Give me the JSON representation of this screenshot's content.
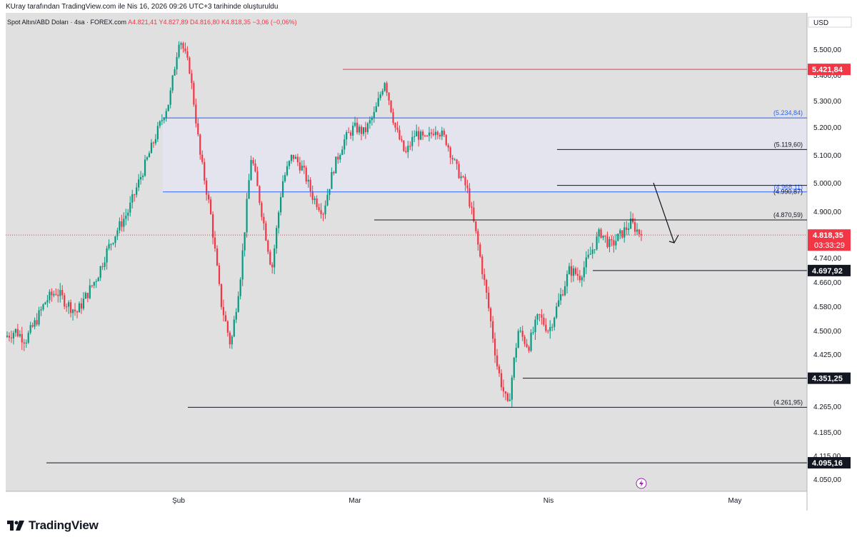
{
  "header": {
    "caption": "KUray tarafından TradingView.com ile Nis 16, 2026 09:26 UTC+3 tarihinde oluşturuldu"
  },
  "legend": {
    "symbol": "Spot Altın/ABD Doları · 4sa · FOREX.com",
    "ohlc": "A4.821,41  Y4.827,89  D4.816,80  K4.818,35  −3,06 (−0,06%)"
  },
  "footer": {
    "brand": "TradingView"
  },
  "colors": {
    "up": "#089981",
    "down": "#f23645",
    "blue": "#2962ff",
    "zone": "#e3e4ed",
    "bg": "#e0e0e0"
  },
  "chart_data": {
    "type": "candlestick",
    "currency": "USD",
    "x_labels": [
      "Şub",
      "Mar",
      "Nis",
      "May"
    ],
    "y_ticks": [
      "5.500,00",
      "5.400,00",
      "5.300,00",
      "5.200,00",
      "5.100,00",
      "5.000,00",
      "4.900,00",
      "4.740,00",
      "4.660,00",
      "4.580,00",
      "4.500,00",
      "4.425,00",
      "4.265,00",
      "4.185,00",
      "4.115,00",
      "4.050,00"
    ],
    "price_path": [
      4480,
      4500,
      4470,
      4530,
      4600,
      4630,
      4590,
      4560,
      4620,
      4680,
      4770,
      4840,
      4900,
      5000,
      5100,
      5200,
      5300,
      5550,
      5420,
      5100,
      4900,
      4600,
      4450,
      4700,
      5100,
      4900,
      4700,
      5000,
      5100,
      5050,
      4950,
      4900,
      5050,
      5150,
      5200,
      5180,
      5250,
      5380,
      5200,
      5100,
      5180,
      5150,
      5200,
      5150,
      5050,
      4980,
      4800,
      4600,
      4380,
      4260,
      4500,
      4450,
      4550,
      4500,
      4600,
      4700,
      4680,
      4750,
      4830,
      4780,
      4820,
      4860,
      4818
    ],
    "levels": [
      {
        "label": "5.421,84",
        "kind": "red-line",
        "value": 5421.84
      },
      {
        "label": "(5.234,84)",
        "kind": "blue-line",
        "value": 5234.84
      },
      {
        "label": "(5.119,60)",
        "kind": "black-line",
        "value": 5119.6
      },
      {
        "label": "(4.968,11)",
        "kind": "blue-line",
        "value": 4968.11
      },
      {
        "label": "(4.990,87)",
        "kind": "black-line",
        "value": 4990.87
      },
      {
        "label": "(4.870,59)",
        "kind": "black-line",
        "value": 4870.59
      },
      {
        "label": "4.697,92",
        "kind": "black-badge",
        "value": 4697.92
      },
      {
        "label": "4.351,25",
        "kind": "black-badge",
        "value": 4351.25
      },
      {
        "label": "(4.261,95)",
        "kind": "black-line",
        "value": 4261.95
      },
      {
        "label": "4.095,16",
        "kind": "black-badge",
        "value": 4095.16
      }
    ],
    "last_price": {
      "label": "4.818,35",
      "countdown": "03:33:29",
      "value": 4818.35
    }
  }
}
